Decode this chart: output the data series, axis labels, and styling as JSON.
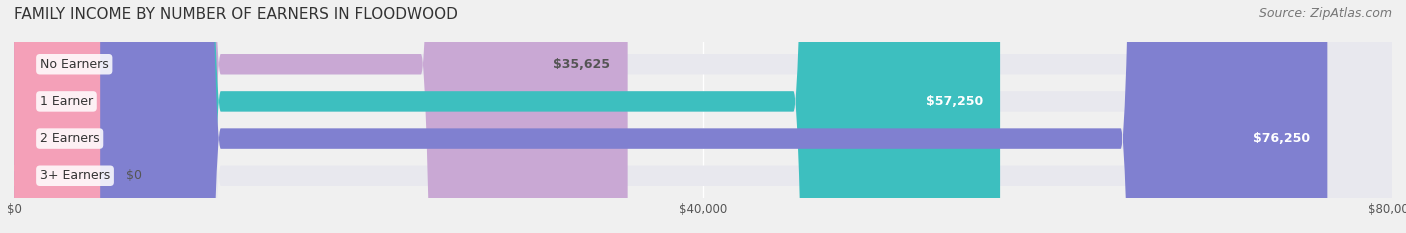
{
  "title": "FAMILY INCOME BY NUMBER OF EARNERS IN FLOODWOOD",
  "source": "Source: ZipAtlas.com",
  "categories": [
    "No Earners",
    "1 Earner",
    "2 Earners",
    "3+ Earners"
  ],
  "values": [
    35625,
    57250,
    76250,
    0
  ],
  "bar_colors": [
    "#c9a8d4",
    "#3dbfbf",
    "#8080d0",
    "#f4a0b8"
  ],
  "label_colors": [
    "#555555",
    "#ffffff",
    "#ffffff",
    "#555555"
  ],
  "value_colors": [
    "#555555",
    "#ffffff",
    "#ffffff",
    "#555555"
  ],
  "xlim": [
    0,
    80000
  ],
  "xticks": [
    0,
    40000,
    80000
  ],
  "xtick_labels": [
    "$0",
    "$40,000",
    "$80,000"
  ],
  "bar_height": 0.55,
  "background_color": "#f0f0f0",
  "bar_background_color": "#e8e8ee",
  "title_fontsize": 11,
  "source_fontsize": 9,
  "label_fontsize": 9,
  "value_fontsize": 9
}
